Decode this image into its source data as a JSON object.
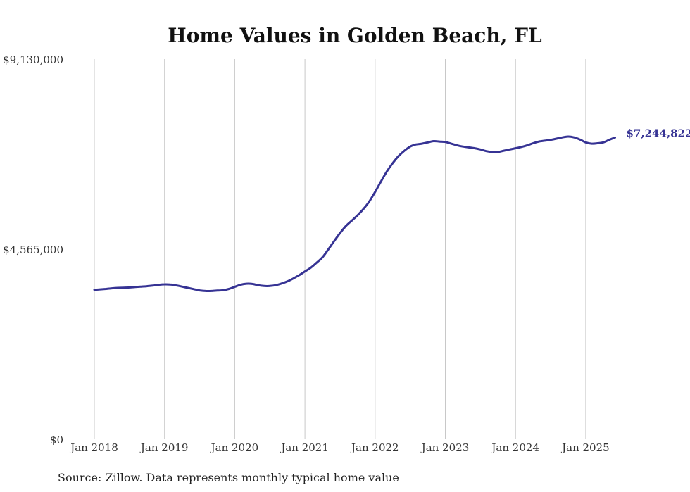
{
  "chart_data": {
    "type": "line",
    "title": "Home Values in Golden Beach, FL",
    "xlabel": "",
    "ylabel": "",
    "y_ticks": [
      "$9,130,000",
      "$4,565,000",
      "$0"
    ],
    "ylim": [
      0,
      9130000
    ],
    "x_ticks": [
      "Jan 2018",
      "Jan 2019",
      "Jan 2020",
      "Jan 2021",
      "Jan 2022",
      "Jan 2023",
      "Jan 2024",
      "Jan 2025"
    ],
    "grid": "vertical",
    "series_color": "#363394",
    "end_label": "$7,244,822",
    "source": "Source: Zillow. Data represents monthly typical home value",
    "series": [
      {
        "x": [
          2018.0,
          2018.083,
          2018.167,
          2018.25,
          2018.333,
          2018.417,
          2018.5,
          2018.583,
          2018.667,
          2018.75,
          2018.833,
          2018.917,
          2019.0,
          2019.083,
          2019.167,
          2019.25,
          2019.333,
          2019.417,
          2019.5,
          2019.583,
          2019.667,
          2019.75,
          2019.833,
          2019.917,
          2020.0,
          2020.083,
          2020.167,
          2020.25,
          2020.333,
          2020.417,
          2020.5,
          2020.583,
          2020.667,
          2020.75,
          2020.833,
          2020.917,
          2021.0,
          2021.083,
          2021.167,
          2021.25,
          2021.333,
          2021.417,
          2021.5,
          2021.583,
          2021.667,
          2021.75,
          2021.833,
          2021.917,
          2022.0,
          2022.083,
          2022.167,
          2022.25,
          2022.333,
          2022.417,
          2022.5,
          2022.583,
          2022.667,
          2022.75,
          2022.833,
          2022.917,
          2023.0,
          2023.083,
          2023.167,
          2023.25,
          2023.333,
          2023.417,
          2023.5,
          2023.583,
          2023.667,
          2023.75,
          2023.833,
          2023.917,
          2024.0,
          2024.083,
          2024.167,
          2024.25,
          2024.333,
          2024.417,
          2024.5,
          2024.583,
          2024.667,
          2024.75,
          2024.833,
          2024.917,
          2025.0,
          2025.083,
          2025.167,
          2025.25,
          2025.333,
          2025.417
        ],
        "values": [
          3590000,
          3600000,
          3610000,
          3625000,
          3635000,
          3640000,
          3645000,
          3655000,
          3665000,
          3675000,
          3690000,
          3710000,
          3720000,
          3715000,
          3695000,
          3665000,
          3635000,
          3605000,
          3575000,
          3560000,
          3560000,
          3570000,
          3580000,
          3610000,
          3660000,
          3710000,
          3735000,
          3730000,
          3700000,
          3680000,
          3680000,
          3700000,
          3740000,
          3790000,
          3860000,
          3940000,
          4030000,
          4120000,
          4240000,
          4370000,
          4560000,
          4760000,
          4950000,
          5120000,
          5250000,
          5380000,
          5530000,
          5710000,
          5940000,
          6190000,
          6430000,
          6630000,
          6800000,
          6930000,
          7030000,
          7080000,
          7100000,
          7130000,
          7160000,
          7150000,
          7140000,
          7100000,
          7060000,
          7030000,
          7010000,
          6990000,
          6960000,
          6920000,
          6900000,
          6900000,
          6930000,
          6960000,
          6990000,
          7020000,
          7060000,
          7110000,
          7150000,
          7170000,
          7190000,
          7220000,
          7250000,
          7270000,
          7250000,
          7200000,
          7130000,
          7100000,
          7110000,
          7130000,
          7190000,
          7244822
        ]
      }
    ]
  }
}
